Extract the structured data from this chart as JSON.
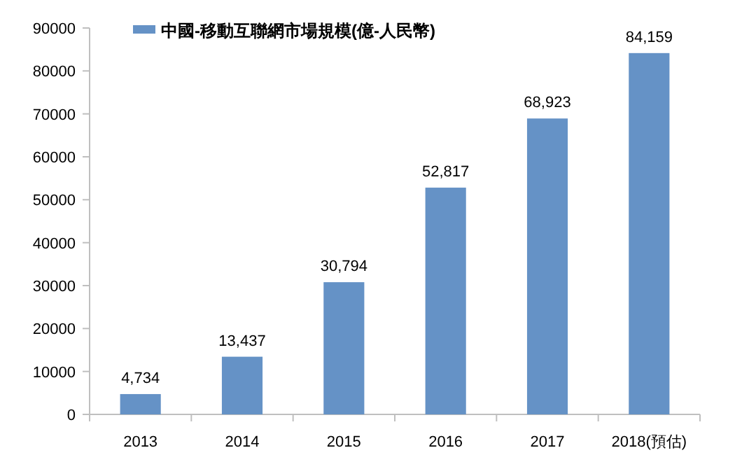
{
  "chart_data": {
    "type": "bar",
    "categories": [
      "2013",
      "2014",
      "2015",
      "2016",
      "2017",
      "2018(預估)"
    ],
    "series": [
      {
        "name": "中國-移動互聯網市場規模(億-人民幣)",
        "color": "#6592c6",
        "values": [
          4734,
          13437,
          30794,
          52817,
          68923,
          84159
        ]
      }
    ],
    "value_labels": [
      "4,734",
      "13,437",
      "30,794",
      "52,817",
      "68,923",
      "84,159"
    ],
    "ylim": [
      0,
      90000
    ],
    "yticks": [
      0,
      10000,
      20000,
      30000,
      40000,
      50000,
      60000,
      70000,
      80000,
      90000
    ],
    "legend": "top left",
    "grid": false
  }
}
